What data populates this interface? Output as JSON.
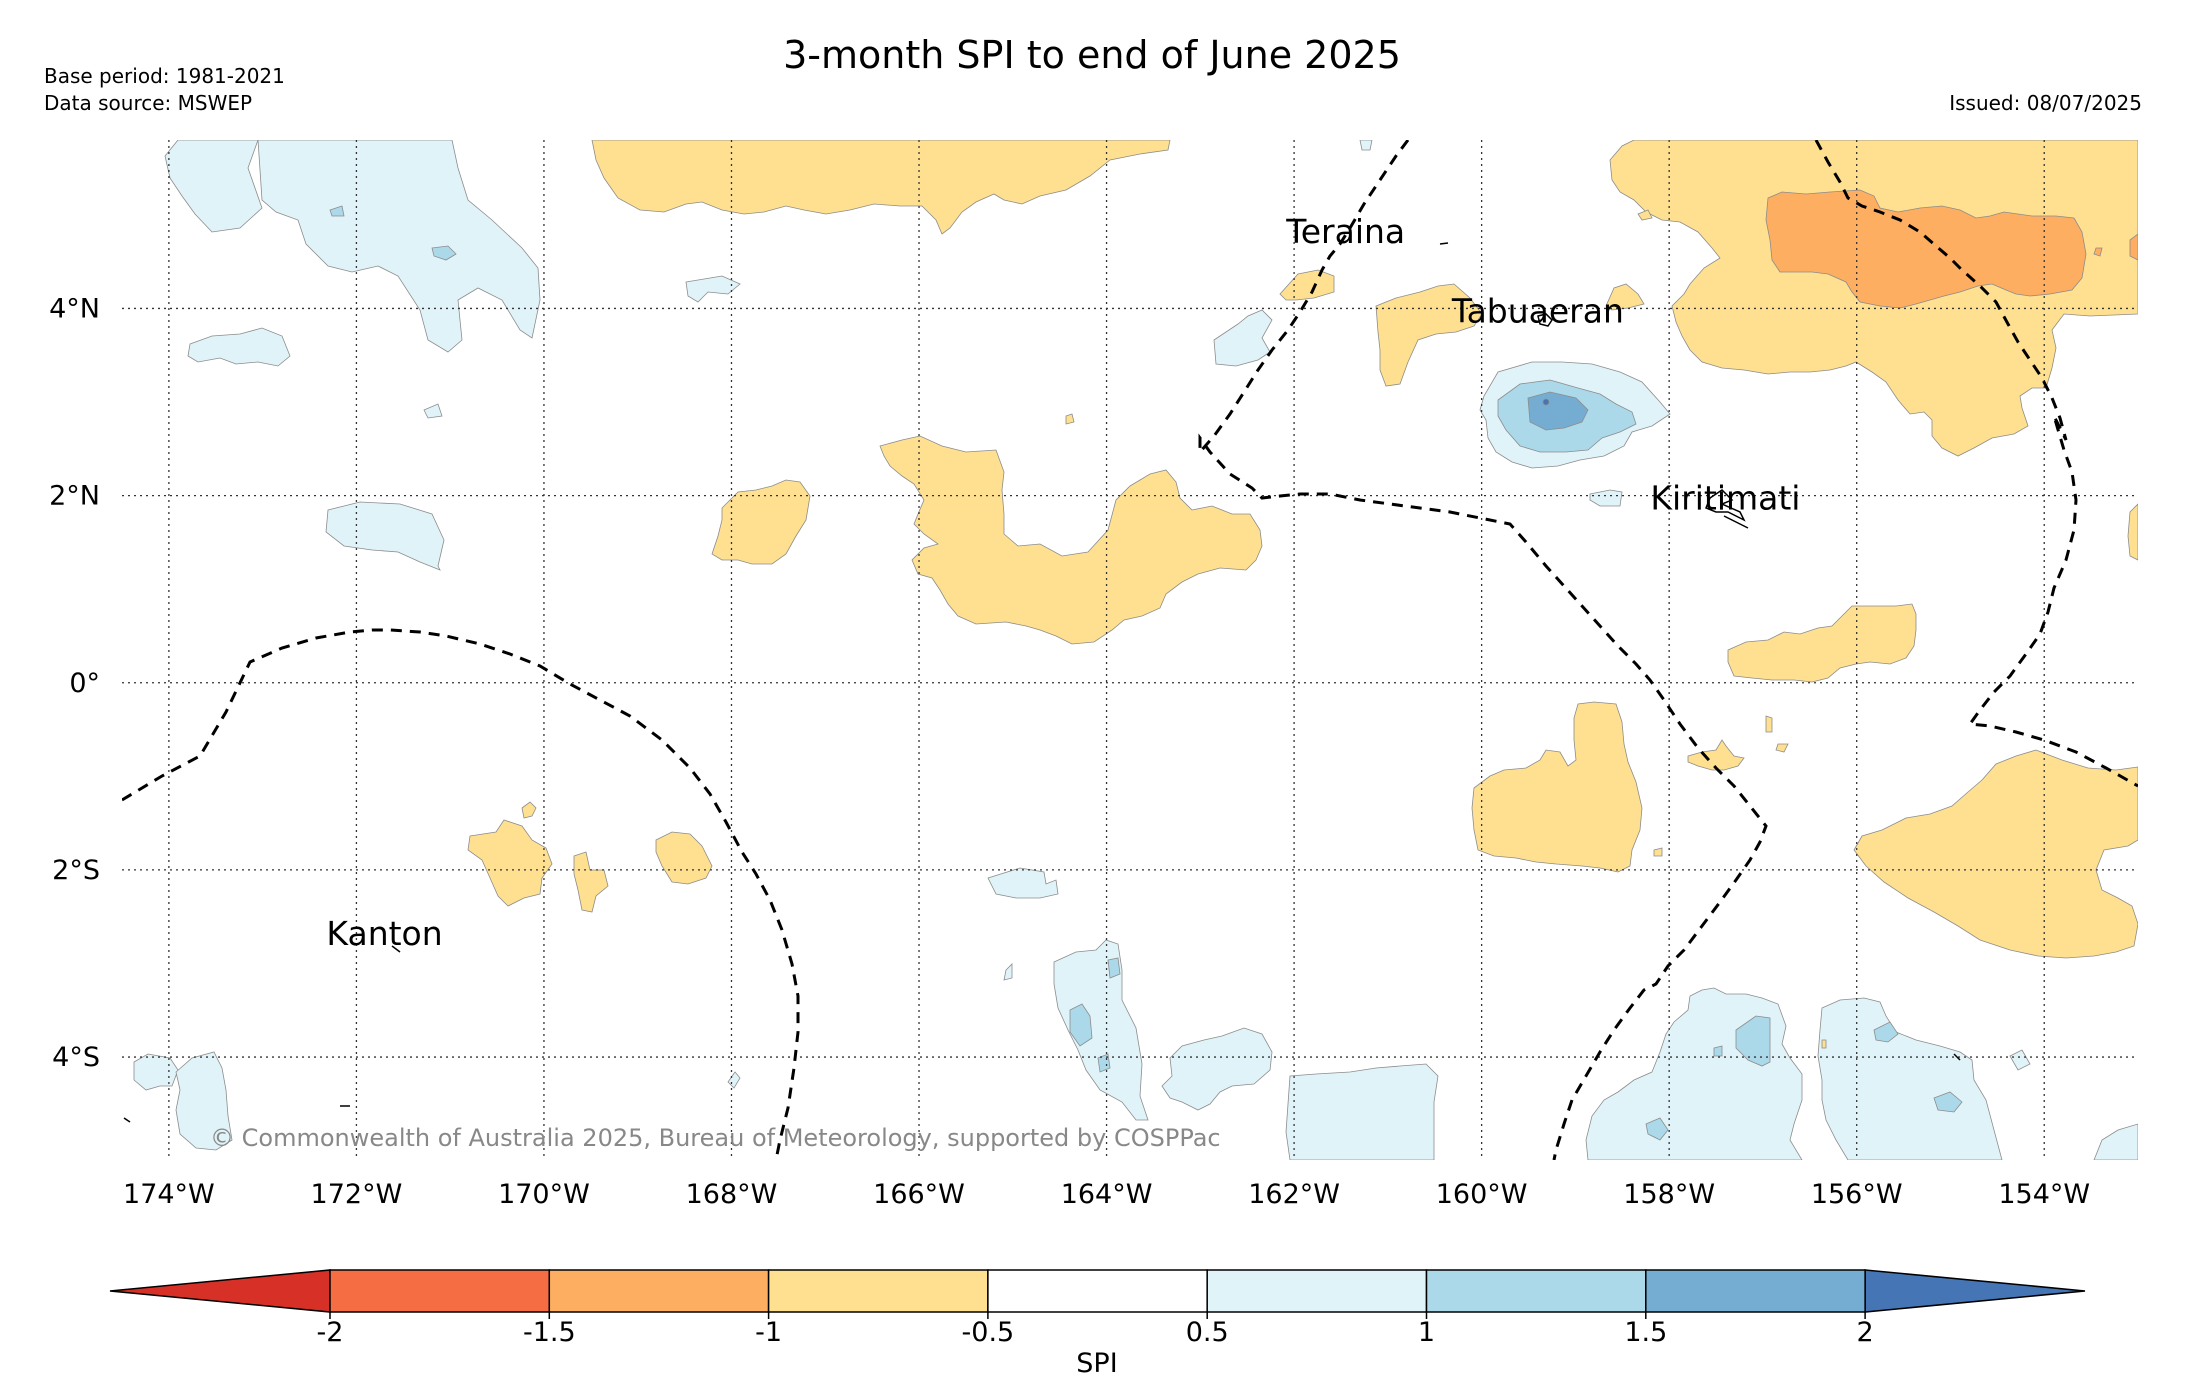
{
  "title": "3-month SPI to end of June 2025",
  "base_period": "Base period: 1981-2021",
  "data_source": "Data source: MSWEP",
  "issued": "Issued: 08/07/2025",
  "copyright": "© Commonwealth of Australia 2025, Bureau of Meteorology, supported by COSPPac",
  "map": {
    "lon_range": [
      -174.5,
      -153
    ],
    "lat_range": [
      -5.1,
      5.8
    ],
    "lon_ticks": [
      -174,
      -172,
      -170,
      -168,
      -166,
      -164,
      -162,
      -160,
      -158,
      -156,
      -154
    ],
    "lon_tick_labels": [
      "174°W",
      "172°W",
      "170°W",
      "168°W",
      "166°W",
      "164°W",
      "162°W",
      "160°W",
      "158°W",
      "156°W",
      "154°W"
    ],
    "lat_ticks": [
      4,
      2,
      0,
      -2,
      -4
    ],
    "lat_tick_labels": [
      "4°N",
      "2°N",
      "0°",
      "2°S",
      "4°S"
    ],
    "places": [
      {
        "name": "Teraina",
        "lon": -161.45,
        "lat": 4.7
      },
      {
        "name": "Tabuaeran",
        "lon": -159.4,
        "lat": 3.85
      },
      {
        "name": "Kiritimati",
        "lon": -157.4,
        "lat": 1.85
      },
      {
        "name": "Kanton",
        "lon": -171.7,
        "lat": -2.8
      }
    ]
  },
  "colorbar": {
    "label": "SPI",
    "tick_labels": [
      "-2",
      "-1.5",
      "-1",
      "-0.5",
      "0.5",
      "1",
      "1.5",
      "2"
    ],
    "colors": [
      "#d73027",
      "#f46d43",
      "#fdae61",
      "#fee090",
      "#ffffff",
      "#e0f3f8",
      "#abd9e9",
      "#74add1",
      "#4575b4"
    ],
    "extend": "both"
  }
}
